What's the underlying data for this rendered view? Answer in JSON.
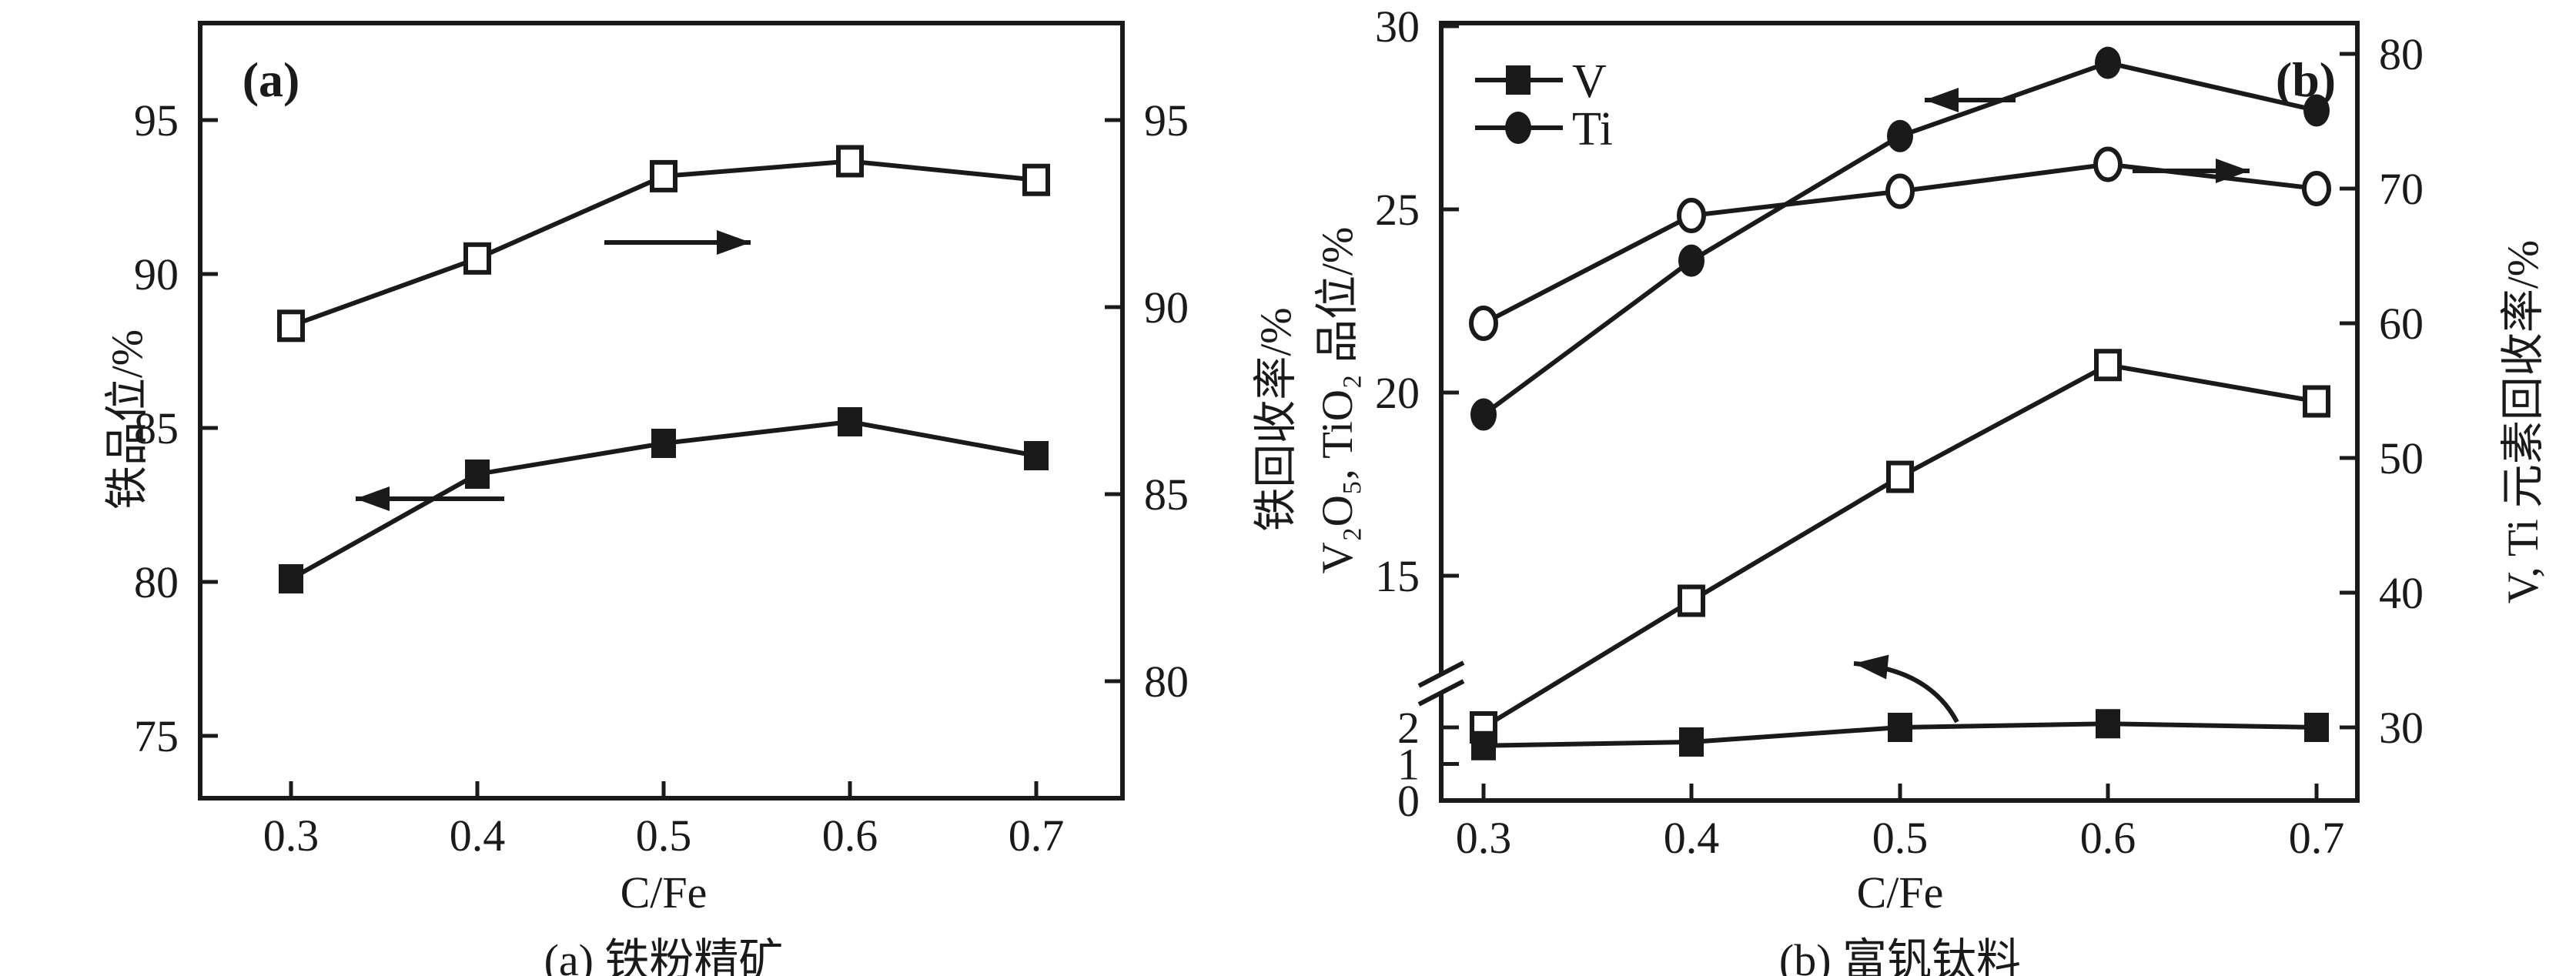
{
  "chart_data": [
    {
      "id": "a",
      "type": "line",
      "panel_tag": "(a)",
      "caption": "(a) 铁粉精矿",
      "xlabel": "C/Fe",
      "x_values": [
        0.3,
        0.4,
        0.5,
        0.6,
        0.7
      ],
      "x_tick_labels": [
        "0.3",
        "0.4",
        "0.5",
        "0.6",
        "0.7"
      ],
      "left_axis": {
        "label": "铁品位/%",
        "ticks": [
          95,
          90,
          85,
          80,
          75
        ],
        "range": [
          74.8,
          97.7
        ],
        "grid": false
      },
      "right_axis": {
        "label": "铁回收率/%",
        "ticks": [
          95,
          90,
          85,
          80
        ],
        "range": [
          76.9,
          97.8
        ],
        "grid": false
      },
      "series": [
        {
          "key": "fe-grade",
          "name": "铁品位",
          "axis": "left",
          "marker": "filled-square",
          "values": [
            80.1,
            83.5,
            84.5,
            85.2,
            84.1
          ]
        },
        {
          "key": "fe-recovery",
          "name": "铁回收率",
          "axis": "right",
          "marker": "open-square",
          "values": [
            89.5,
            91.3,
            93.5,
            93.9,
            93.4
          ]
        }
      ],
      "annotations": [
        {
          "icon": "arrow-left",
          "meaning": "filled series reads left axis"
        },
        {
          "icon": "arrow-right",
          "meaning": "open series reads right axis"
        }
      ]
    },
    {
      "id": "b",
      "type": "line",
      "panel_tag": "(b)",
      "caption": "(b) 富钒钛料",
      "xlabel": "C/Fe",
      "x_values": [
        0.3,
        0.4,
        0.5,
        0.6,
        0.7
      ],
      "x_tick_labels": [
        "0.3",
        "0.4",
        "0.5",
        "0.6",
        "0.7"
      ],
      "left_axis": {
        "label": "V₂O₅, TiO₂ 品位/%",
        "upper_ticks": [
          30,
          25,
          20,
          15
        ],
        "lower_ticks": [
          2,
          1,
          0
        ],
        "axis_break": true,
        "grid": false
      },
      "right_axis": {
        "label": "V, Ti 元素回收率/%",
        "ticks": [
          80,
          70,
          60,
          50,
          40,
          30
        ],
        "range": [
          28.5,
          82.3
        ],
        "grid": false
      },
      "legend": {
        "position": "top-left",
        "items": [
          {
            "label": "V",
            "marker": "filled-square"
          },
          {
            "label": "Ti",
            "marker": "filled-circle"
          }
        ]
      },
      "series": [
        {
          "key": "tio2-grade",
          "name": "TiO₂ 品位",
          "legend": "Ti",
          "axis": "left",
          "marker": "filled-circle",
          "values": [
            19.4,
            23.6,
            27.0,
            29.0,
            27.7
          ]
        },
        {
          "key": "ti-recovery",
          "name": "Ti 回收率",
          "axis": "right",
          "marker": "open-circle",
          "values": [
            60.0,
            68.0,
            69.8,
            71.8,
            70.0
          ]
        },
        {
          "key": "v-recovery",
          "name": "V 回收率",
          "axis": "right",
          "marker": "open-square",
          "values": [
            30.0,
            39.4,
            48.6,
            56.9,
            54.2
          ]
        },
        {
          "key": "v2o5-grade",
          "name": "V₂O₅ 品位",
          "legend": "V",
          "axis": "left-lower",
          "marker": "filled-square",
          "values": [
            1.5,
            1.6,
            2.0,
            2.1,
            2.0
          ]
        }
      ],
      "annotations": [
        {
          "icon": "arrow-left",
          "meaning": "TiO₂ grade reads left axis"
        },
        {
          "icon": "arrow-right",
          "meaning": "Ti recovery reads right axis"
        },
        {
          "icon": "curved-arrow-left",
          "meaning": "V₂O₅ grade reads left axis"
        }
      ]
    }
  ],
  "colors": {
    "ink": "#1a1a1a",
    "background": "#ffffff"
  }
}
